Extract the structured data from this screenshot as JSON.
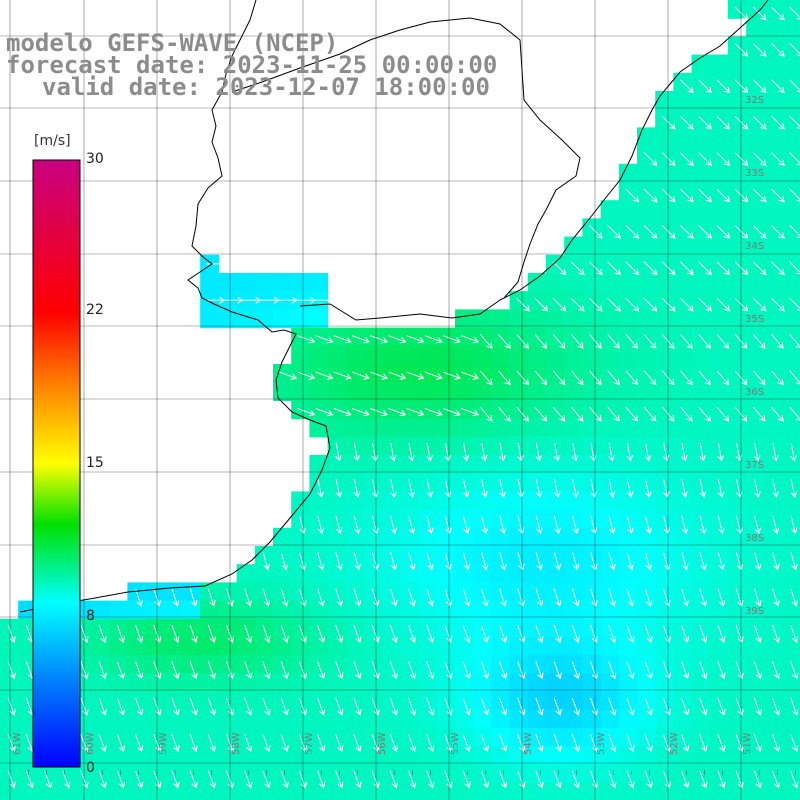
{
  "title": {
    "line1": "modelo GEFS-WAVE (NCEP)",
    "line2": "forecast date: 2023-11-25 00:00:00",
    "line3": "valid date: 2023-12-07 18:00:00"
  },
  "colorbar": {
    "unit": "[m/s]",
    "ticks": [
      "30",
      "22",
      "15",
      "8",
      "0"
    ],
    "tick_values": [
      30,
      22,
      15,
      8,
      0
    ],
    "range": [
      0,
      30
    ],
    "colors": [
      "#0000ff",
      "#00aaff",
      "#00ffff",
      "#00e000",
      "#88ff00",
      "#ffff00",
      "#ff8800",
      "#ff0000",
      "#dd0066",
      "#aa0088"
    ]
  },
  "lat_labels": [
    "32S",
    "33S",
    "34S",
    "35S",
    "36S",
    "37S",
    "38S",
    "39S"
  ],
  "lon_labels": [
    "61W",
    "60W",
    "59W",
    "58W",
    "57W",
    "56W",
    "55W",
    "54W",
    "53W",
    "52W",
    "51W"
  ],
  "colors": {
    "land": "#ffffff",
    "grid": "#000000",
    "coast": "#000000",
    "arrow": "#ffffff",
    "title": "#8c8c8c"
  }
}
